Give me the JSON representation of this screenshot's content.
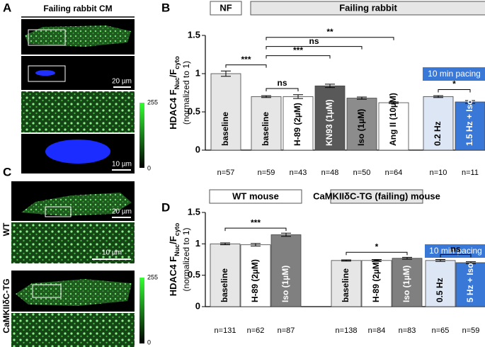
{
  "panels": {
    "a": {
      "letter": "A",
      "title": "Failing rabbit CM",
      "scale_bars": [
        "20 µm",
        "10 µm"
      ],
      "colorbar": [
        255,
        0
      ]
    },
    "c": {
      "letter": "C",
      "rows": [
        "WT",
        "CaMKIIδC-TG"
      ],
      "scale_bars": [
        "20 µm",
        "10 µm"
      ],
      "colorbar": [
        255,
        0
      ]
    }
  },
  "chart_data": [
    {
      "type": "bar",
      "letter": "B",
      "ylabel": [
        "HDAC4 F",
        "Nuc",
        "/F",
        "cyto"
      ],
      "ylabel_note": "(normalized to 1)",
      "categories": [
        "baseline",
        "baseline",
        "H-89 (2µM)",
        "KN93 (1µM)",
        "Iso (1µM)",
        "Ang II (10µM)",
        "0.2 Hz",
        "1.5 Hz + Iso"
      ],
      "values": [
        1.0,
        0.7,
        0.7,
        0.84,
        0.68,
        0.62,
        0.7,
        0.63
      ],
      "errors": [
        0.035,
        0.012,
        0.025,
        0.022,
        0.015,
        0.01,
        0.012,
        0.018
      ],
      "colors": [
        "#e6e6e6",
        "#e6e6e6",
        "#ffffff",
        "#595959",
        "#8c8c8c",
        "#ffffff",
        "#dce6f5",
        "#3a78d8"
      ],
      "n_labels": [
        "n=57",
        "n=59",
        "n=43",
        "n=48",
        "n=50",
        "n=64",
        "n=10",
        "n=11"
      ],
      "groups": [
        {
          "label": "NF",
          "from": 0,
          "to": 0,
          "fill": "#ffffff"
        },
        {
          "label": "Failing rabbit",
          "from": 1,
          "to": 7,
          "fill": "#e6e6e6"
        }
      ],
      "pacing": {
        "label": "10 min pacing",
        "from": 6,
        "to": 7,
        "color": "#3a78d8"
      },
      "brackets": [
        {
          "from": 1,
          "to": 2,
          "label": "ns"
        },
        {
          "from": 0,
          "to": 1,
          "label": "***"
        },
        {
          "from": 1,
          "to": 3,
          "label": "***"
        },
        {
          "from": 1,
          "to": 4,
          "label": "ns"
        },
        {
          "from": 1,
          "to": 5,
          "label": "**"
        },
        {
          "from": 6,
          "to": 7,
          "label": "*"
        }
      ],
      "ylim": [
        0,
        1.5
      ],
      "yticks": [
        0,
        0.5,
        1,
        1.5
      ]
    },
    {
      "type": "bar",
      "letter": "D",
      "ylabel": [
        "HDAC4 F",
        "Nuc",
        "/F",
        "cyto"
      ],
      "ylabel_note": "(normalized to 1)",
      "categories": [
        "baseline",
        "H-89 (2µM)",
        "Iso (1µM)",
        "baseline",
        "H-89 (2µM)",
        "Iso (1µM)",
        "0.5 Hz",
        "5 Hz + Iso"
      ],
      "values": [
        1.0,
        0.985,
        1.145,
        0.735,
        0.735,
        0.77,
        0.735,
        0.7
      ],
      "errors": [
        0.015,
        0.02,
        0.025,
        0.01,
        0.015,
        0.015,
        0.015,
        0.015
      ],
      "colors": [
        "#e6e6e6",
        "#ffffff",
        "#808080",
        "#e6e6e6",
        "#ffffff",
        "#808080",
        "#dce6f5",
        "#3a78d8"
      ],
      "n_labels": [
        "n=131",
        "n=62",
        "n=87",
        "n=138",
        "n=84",
        "n=83",
        "n=65",
        "n=59"
      ],
      "groups": [
        {
          "label": "WT mouse",
          "from": 0,
          "to": 2,
          "fill": "#ffffff"
        },
        {
          "label": "CaMKIIδC-TG (failing) mouse",
          "from": 3,
          "to": 5,
          "fill": "#e6e6e6"
        }
      ],
      "pacing": {
        "label": "10 min pacing",
        "from": 6,
        "to": 7,
        "color": "#3a78d8"
      },
      "brackets": [
        {
          "from": 0,
          "to": 2,
          "label": "***"
        },
        {
          "from": 3,
          "to": 5,
          "label": "*"
        },
        {
          "from": 6,
          "to": 7,
          "label": "ns"
        }
      ],
      "ylim": [
        0,
        1.5
      ],
      "yticks": [
        0,
        0.5,
        1,
        1.5
      ]
    }
  ]
}
